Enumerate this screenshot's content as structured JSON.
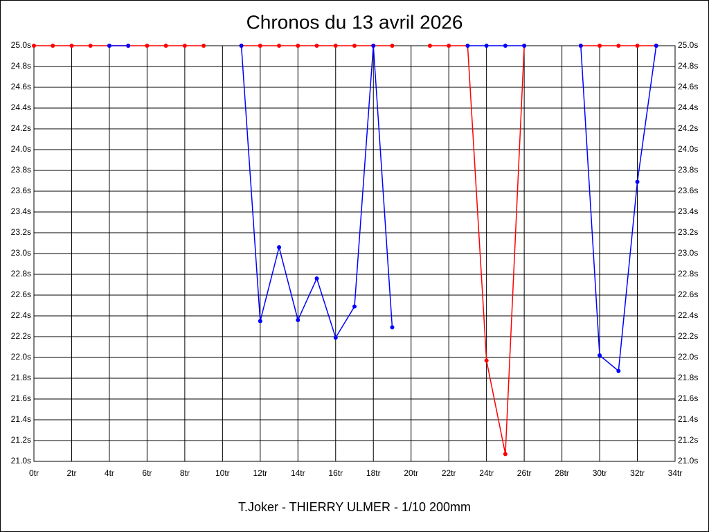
{
  "chart_data": {
    "type": "line",
    "title": "Chronos du 13 avril 2026",
    "xlabel": "T.Joker - THIERRY ULMER - 1/10 200mm",
    "x": [
      0,
      1,
      2,
      3,
      4,
      5,
      6,
      7,
      8,
      9,
      10,
      11,
      12,
      13,
      14,
      15,
      16,
      17,
      18,
      19,
      20,
      21,
      22,
      23,
      24,
      25,
      26,
      27,
      28,
      29,
      30,
      31,
      32,
      33
    ],
    "series": [
      {
        "color": "#ff0000",
        "values": [
          25,
          25,
          25,
          25,
          25,
          25,
          25,
          25,
          25,
          25,
          null,
          25,
          25,
          25,
          25,
          25,
          25,
          25,
          25,
          25,
          null,
          25,
          25,
          25,
          21.97,
          21.07,
          25,
          null,
          null,
          25,
          25,
          25,
          25,
          25
        ]
      },
      {
        "color": "#0000ff",
        "values": [
          null,
          null,
          null,
          null,
          25,
          25,
          null,
          null,
          null,
          null,
          null,
          25,
          22.35,
          23.06,
          22.36,
          22.76,
          22.19,
          22.49,
          25,
          22.29,
          null,
          null,
          null,
          25,
          25,
          25,
          25,
          null,
          null,
          25,
          22.02,
          21.87,
          23.69,
          25
        ]
      }
    ],
    "xlim": [
      0,
      34
    ],
    "ylim": [
      21,
      25
    ],
    "xticks": [
      {
        "value": 0,
        "label": "0tr"
      },
      {
        "value": 2,
        "label": "2tr"
      },
      {
        "value": 4,
        "label": "4tr"
      },
      {
        "value": 6,
        "label": "6tr"
      },
      {
        "value": 8,
        "label": "8tr"
      },
      {
        "value": 10,
        "label": "10tr"
      },
      {
        "value": 12,
        "label": "12tr"
      },
      {
        "value": 14,
        "label": "14tr"
      },
      {
        "value": 16,
        "label": "16tr"
      },
      {
        "value": 18,
        "label": "18tr"
      },
      {
        "value": 20,
        "label": "20tr"
      },
      {
        "value": 22,
        "label": "22tr"
      },
      {
        "value": 24,
        "label": "24tr"
      },
      {
        "value": 26,
        "label": "26tr"
      },
      {
        "value": 28,
        "label": "28tr"
      },
      {
        "value": 30,
        "label": "30tr"
      },
      {
        "value": 32,
        "label": "32tr"
      },
      {
        "value": 34,
        "label": "34tr"
      }
    ],
    "yticks": [
      {
        "value": 21,
        "label": "21.0s"
      },
      {
        "value": 21.2,
        "label": "21.2s"
      },
      {
        "value": 21.4,
        "label": "21.4s"
      },
      {
        "value": 21.6,
        "label": "21.6s"
      },
      {
        "value": 21.8,
        "label": "21.8s"
      },
      {
        "value": 22,
        "label": "22.0s"
      },
      {
        "value": 22.2,
        "label": "22.2s"
      },
      {
        "value": 22.4,
        "label": "22.4s"
      },
      {
        "value": 22.6,
        "label": "22.6s"
      },
      {
        "value": 22.8,
        "label": "22.8s"
      },
      {
        "value": 23,
        "label": "23.0s"
      },
      {
        "value": 23.2,
        "label": "23.2s"
      },
      {
        "value": 23.4,
        "label": "23.4s"
      },
      {
        "value": 23.6,
        "label": "23.6s"
      },
      {
        "value": 23.8,
        "label": "23.8s"
      },
      {
        "value": 24,
        "label": "24.0s"
      },
      {
        "value": 24.2,
        "label": "24.2s"
      },
      {
        "value": 24.4,
        "label": "24.4s"
      },
      {
        "value": 24.6,
        "label": "24.6s"
      },
      {
        "value": 24.8,
        "label": "24.8s"
      },
      {
        "value": 25,
        "label": "25.0s"
      }
    ],
    "grid": true
  }
}
